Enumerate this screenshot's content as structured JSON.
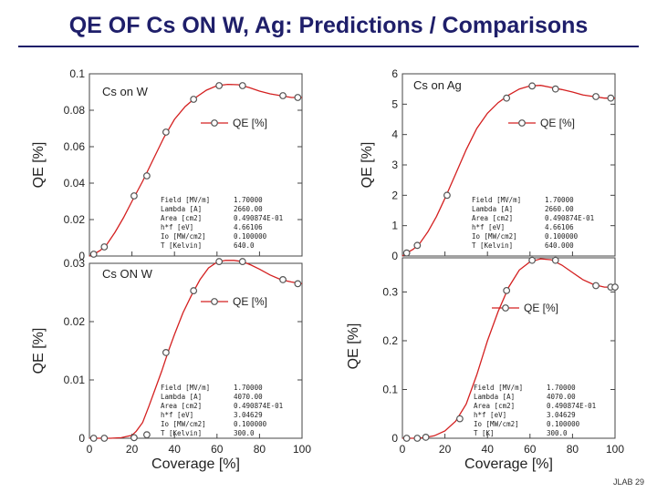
{
  "slide": {
    "title": "QE OF Cs ON W, Ag:  Predictions / Comparisons",
    "footer": "JLAB 29"
  },
  "colors": {
    "title": "#1f1f6a",
    "series": "#d42020",
    "marker": "#555555",
    "frame": "#444444"
  },
  "chart_data": [
    {
      "type": "line",
      "panel": "top-left",
      "label": "Cs on W",
      "ylabel": "QE [%]",
      "xlabel": "",
      "xlim": [
        0,
        100
      ],
      "ylim": [
        0,
        0.1
      ],
      "yticks": [
        0,
        0.02,
        0.04,
        0.06,
        0.08,
        0.1
      ],
      "ytick_labels": [
        "0",
        "0.02",
        "0.04",
        "0.06",
        "0.08",
        "0.1"
      ],
      "xticks": [],
      "xtick_labels": [],
      "legend": "QE [%]",
      "legend_position": "upper-right",
      "points": {
        "x": [
          2,
          7,
          21,
          27,
          36,
          49,
          61,
          72,
          91,
          98
        ],
        "y": [
          0.001,
          0.005,
          0.033,
          0.044,
          0.068,
          0.086,
          0.0935,
          0.0935,
          0.088,
          0.087
        ]
      },
      "curve": {
        "x": [
          0,
          2,
          5,
          8,
          12,
          16,
          20,
          25,
          30,
          35,
          40,
          45,
          50,
          55,
          60,
          65,
          70,
          75,
          80,
          85,
          90,
          95,
          100
        ],
        "y": [
          0,
          0.001,
          0.003,
          0.006,
          0.013,
          0.021,
          0.03,
          0.041,
          0.053,
          0.065,
          0.075,
          0.082,
          0.087,
          0.091,
          0.0935,
          0.0942,
          0.094,
          0.0925,
          0.0905,
          0.089,
          0.088,
          0.087,
          0.087
        ]
      },
      "info": {
        "keys": [
          "Field [MV/m]",
          "Lambda [A]",
          "Area [cm2]",
          "h*f [eV]",
          "Io [MW/cm2]",
          "T [Kelvin]"
        ],
        "values": [
          "1.70000",
          "2660.00",
          "0.490874E-01",
          "4.66106",
          "0.100000",
          "640.0"
        ]
      }
    },
    {
      "type": "line",
      "panel": "top-right",
      "label": "Cs on Ag",
      "ylabel": "QE [%]",
      "xlabel": "",
      "xlim": [
        0,
        100
      ],
      "ylim": [
        0,
        6
      ],
      "yticks": [
        0,
        1,
        2,
        3,
        4,
        5,
        6
      ],
      "ytick_labels": [
        "0",
        "1",
        "2",
        "3",
        "4",
        "5",
        "6"
      ],
      "xticks": [],
      "xtick_labels": [],
      "legend": "QE [%]",
      "legend_position": "upper-right",
      "points": {
        "x": [
          2,
          7,
          21,
          49,
          61,
          72,
          91,
          98
        ],
        "y": [
          0.1,
          0.35,
          2.0,
          5.2,
          5.6,
          5.5,
          5.25,
          5.2
        ]
      },
      "curve": {
        "x": [
          0,
          2,
          5,
          8,
          12,
          16,
          20,
          25,
          30,
          35,
          40,
          45,
          50,
          55,
          60,
          65,
          70,
          75,
          80,
          85,
          90,
          95,
          100
        ],
        "y": [
          0,
          0.1,
          0.22,
          0.4,
          0.8,
          1.3,
          1.9,
          2.7,
          3.5,
          4.2,
          4.7,
          5.05,
          5.3,
          5.5,
          5.6,
          5.62,
          5.55,
          5.48,
          5.4,
          5.3,
          5.25,
          5.2,
          5.2
        ]
      },
      "info": {
        "keys": [
          "Field [MV/m]",
          "Lambda [A]",
          "Area [cm2]",
          "h*f [eV]",
          "Io [MW/cm2]",
          "T [Kelvin]"
        ],
        "values": [
          "1.70000",
          "2660.00",
          "0.490874E-01",
          "4.66106",
          "0.100000",
          "640.000"
        ]
      }
    },
    {
      "type": "line",
      "panel": "bottom-left",
      "label": "Cs ON W",
      "ylabel": "QE [%]",
      "xlabel": "Coverage [%]",
      "xlim": [
        0,
        100
      ],
      "ylim": [
        0,
        0.03
      ],
      "yticks": [
        0,
        0.01,
        0.02,
        0.03
      ],
      "ytick_labels": [
        "0",
        "0.01",
        "0.02",
        "0.03"
      ],
      "xticks": [
        0,
        20,
        40,
        60,
        80,
        100
      ],
      "xtick_labels": [
        "0",
        "20",
        "40",
        "60",
        "80",
        "100"
      ],
      "legend": "QE [%]",
      "legend_position": "upper-right",
      "points": {
        "x": [
          2,
          7,
          21,
          27,
          36,
          49,
          61,
          72,
          91,
          98
        ],
        "y": [
          0,
          0,
          0.0001,
          0.0006,
          0.0147,
          0.0253,
          0.0303,
          0.0303,
          0.0272,
          0.0265
        ]
      },
      "curve": {
        "x": [
          0,
          5,
          10,
          15,
          20,
          22,
          25,
          28,
          31,
          34,
          37,
          40,
          44,
          48,
          52,
          56,
          60,
          64,
          68,
          72,
          76,
          80,
          85,
          90,
          95,
          100
        ],
        "y": [
          0,
          0,
          0,
          0.0001,
          0.0005,
          0.0012,
          0.0027,
          0.0055,
          0.0085,
          0.0115,
          0.0148,
          0.0178,
          0.0215,
          0.0245,
          0.0272,
          0.0292,
          0.0302,
          0.0305,
          0.0305,
          0.0303,
          0.0297,
          0.029,
          0.028,
          0.0272,
          0.0268,
          0.0265
        ]
      },
      "info": {
        "keys": [
          "Field [MV/m]",
          "Lambda [A]",
          "Area [cm2]",
          "h*f [eV]",
          "Io [MW/cm2]",
          "T [Kelvin]"
        ],
        "values": [
          "1.70000",
          "4070.00",
          "0.490874E-01",
          "3.04629",
          "0.100000",
          "300.0"
        ]
      }
    },
    {
      "type": "line",
      "panel": "bottom-right",
      "label": "",
      "ylabel": "QE [%]",
      "xlabel": "Coverage [%]",
      "xlim": [
        0,
        100
      ],
      "ylim": [
        0,
        0.37
      ],
      "yticks": [
        0,
        0.1,
        0.2,
        0.3
      ],
      "ytick_labels": [
        "0",
        "0.1",
        "0.2",
        "0.3"
      ],
      "xticks": [
        0,
        20,
        40,
        60,
        80,
        100
      ],
      "xtick_labels": [
        "0",
        "20",
        "40",
        "60",
        "80",
        "100"
      ],
      "legend": "QE [%]",
      "legend_position": "center-right",
      "points": {
        "x": [
          2,
          7,
          11,
          27,
          49,
          61,
          72,
          91,
          98,
          100
        ],
        "y": [
          0,
          0,
          0.002,
          0.04,
          0.303,
          0.365,
          0.365,
          0.313,
          0.31,
          0.31
        ]
      },
      "curve": {
        "x": [
          0,
          5,
          10,
          15,
          20,
          25,
          30,
          35,
          40,
          45,
          50,
          55,
          60,
          65,
          70,
          75,
          80,
          85,
          90,
          95,
          100
        ],
        "y": [
          0,
          0,
          0.001,
          0.005,
          0.015,
          0.035,
          0.07,
          0.13,
          0.2,
          0.26,
          0.31,
          0.345,
          0.362,
          0.368,
          0.366,
          0.355,
          0.34,
          0.325,
          0.315,
          0.31,
          0.31
        ]
      },
      "info": {
        "keys": [
          "Field [MV/m]",
          "Lambda [A]",
          "Area [cm2]",
          "h*f [eV]",
          "Io [MW/cm2]",
          "T [K]"
        ],
        "values": [
          "1.70000",
          "4070.00",
          "0.490874E-01",
          "3.04629",
          "0.100000",
          "300.0"
        ]
      }
    }
  ]
}
